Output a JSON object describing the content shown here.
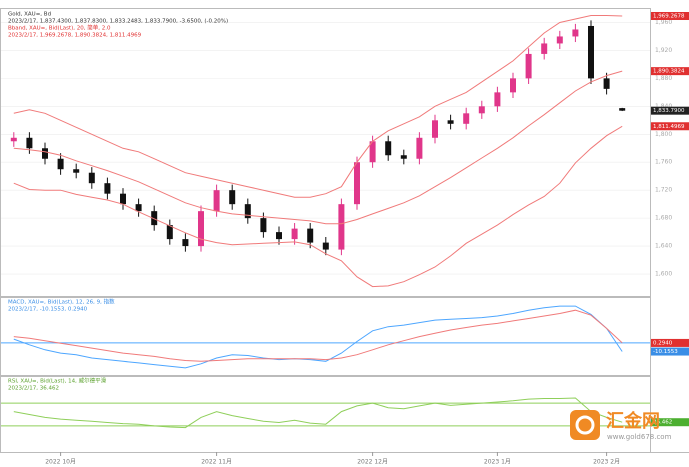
{
  "chart_data": [
    {
      "type": "candlestick",
      "title": "Gold, XAU=, Bd",
      "subtitle": "2023/2/17, 1,837.4300, 1,837.8300, 1,833.2483, 1,833.7900, -3.6500, (-0.20%)",
      "band_title": "Bband, XAU=, Bid(Last), 20, 简单, 2.0",
      "band_subtitle": "2023/2/17, 1,969.2678, 1,890.3824, 1,811.4969",
      "categories": [
        null,
        null,
        null,
        "2022 10月",
        null,
        null,
        null,
        null,
        null,
        null,
        null,
        null,
        null,
        "2022 11月",
        null,
        null,
        null,
        null,
        null,
        null,
        null,
        null,
        null,
        "2022 12月",
        null,
        null,
        null,
        null,
        null,
        null,
        null,
        "2023 1月",
        null,
        null,
        null,
        null,
        null,
        null,
        "2023 2月",
        null
      ],
      "open": [
        1790,
        1795,
        1780,
        1765,
        1750,
        1745,
        1730,
        1715,
        1700,
        1690,
        1670,
        1650,
        1640,
        1690,
        1720,
        1700,
        1680,
        1660,
        1650,
        1665,
        1645,
        1635,
        1700,
        1760,
        1790,
        1770,
        1765,
        1795,
        1820,
        1815,
        1830,
        1840,
        1860,
        1880,
        1915,
        1930,
        1940,
        1955,
        1880,
        1837.43
      ],
      "high": [
        1803,
        1803,
        1788,
        1773,
        1758,
        1753,
        1738,
        1723,
        1708,
        1698,
        1678,
        1658,
        1698,
        1728,
        1728,
        1708,
        1688,
        1668,
        1673,
        1673,
        1653,
        1708,
        1768,
        1798,
        1798,
        1778,
        1803,
        1828,
        1828,
        1838,
        1848,
        1868,
        1888,
        1923,
        1938,
        1948,
        1958,
        1963,
        1888,
        1837.83
      ],
      "low": [
        1782,
        1772,
        1757,
        1742,
        1737,
        1722,
        1707,
        1692,
        1682,
        1662,
        1642,
        1632,
        1632,
        1682,
        1692,
        1672,
        1652,
        1642,
        1642,
        1637,
        1627,
        1627,
        1692,
        1752,
        1762,
        1757,
        1757,
        1787,
        1807,
        1807,
        1822,
        1832,
        1852,
        1872,
        1907,
        1922,
        1932,
        1872,
        1857,
        1833.2483
      ],
      "close": [
        1795,
        1780,
        1765,
        1750,
        1745,
        1730,
        1715,
        1700,
        1690,
        1670,
        1650,
        1640,
        1690,
        1720,
        1700,
        1680,
        1660,
        1650,
        1665,
        1645,
        1635,
        1700,
        1760,
        1790,
        1770,
        1765,
        1795,
        1820,
        1815,
        1830,
        1840,
        1860,
        1880,
        1915,
        1930,
        1940,
        1950,
        1880,
        1865,
        1833.79
      ],
      "up_color": "#e0368a",
      "down_color": "#111111",
      "series": [
        {
          "name": "upper",
          "color": "#f07a7a",
          "values": [
            1830,
            1835,
            1830,
            1820,
            1810,
            1800,
            1790,
            1780,
            1775,
            1765,
            1755,
            1745,
            1740,
            1735,
            1730,
            1725,
            1720,
            1715,
            1710,
            1710,
            1715,
            1725,
            1760,
            1790,
            1805,
            1815,
            1825,
            1840,
            1850,
            1860,
            1875,
            1890,
            1905,
            1925,
            1945,
            1960,
            1965,
            1970,
            1970,
            1969.2678
          ]
        },
        {
          "name": "middle",
          "color": "#f07a7a",
          "values": [
            1780,
            1778,
            1775,
            1770,
            1762,
            1755,
            1748,
            1740,
            1732,
            1722,
            1712,
            1702,
            1695,
            1690,
            1686,
            1684,
            1682,
            1680,
            1678,
            1676,
            1672,
            1672,
            1678,
            1686,
            1694,
            1702,
            1712,
            1725,
            1738,
            1752,
            1766,
            1780,
            1795,
            1812,
            1828,
            1845,
            1862,
            1875,
            1884,
            1890.3824
          ]
        },
        {
          "name": "lower",
          "color": "#f07a7a",
          "values": [
            1730,
            1721,
            1720,
            1720,
            1714,
            1710,
            1706,
            1700,
            1689,
            1679,
            1669,
            1659,
            1650,
            1645,
            1642,
            1643,
            1644,
            1645,
            1646,
            1642,
            1629,
            1619,
            1596,
            1582,
            1583,
            1589,
            1599,
            1610,
            1626,
            1644,
            1657,
            1670,
            1685,
            1699,
            1711,
            1730,
            1759,
            1780,
            1798,
            1811.4969
          ]
        }
      ],
      "ylim": [
        1570,
        1975
      ],
      "yticks": [
        {
          "value": 1600,
          "label": "1,600"
        },
        {
          "value": 1640,
          "label": "1,640"
        },
        {
          "value": 1680,
          "label": "1,680"
        },
        {
          "value": 1720,
          "label": "1,720"
        },
        {
          "value": 1760,
          "label": "1,760"
        },
        {
          "value": 1800,
          "label": "1,800"
        },
        {
          "value": 1840,
          "label": "1,840"
        },
        {
          "value": 1880,
          "label": "1,880"
        },
        {
          "value": 1920,
          "label": "1,920"
        },
        {
          "value": 1960,
          "label": "1,960"
        }
      ],
      "grid": true,
      "price_tags": [
        {
          "value": 1969.2678,
          "label": "1,969.2678",
          "color": "#e03030"
        },
        {
          "value": 1890.3824,
          "label": "1,890.3824",
          "color": "#e03030"
        },
        {
          "value": 1833.79,
          "label": "1,833.7900",
          "color": "#222222"
        },
        {
          "value": 1811.4969,
          "label": "1,811.4969",
          "color": "#e03030"
        }
      ]
    },
    {
      "type": "line",
      "title": "MACD, XAU=, Bid(Last), 12, 26, 9, 指数",
      "subtitle": "2023/2/17, -10.1553, 0.2940",
      "title_color": "#3a8ee6",
      "series": [
        {
          "name": "MACD",
          "color": "#4da6ff",
          "values": [
            5,
            -2,
            -8,
            -12,
            -14,
            -18,
            -20,
            -22,
            -24,
            -26,
            -28,
            -30,
            -25,
            -18,
            -14,
            -15,
            -18,
            -20,
            -19,
            -20,
            -22,
            -12,
            2,
            15,
            20,
            22,
            25,
            28,
            29,
            30,
            31,
            33,
            36,
            40,
            43,
            45,
            45,
            35,
            18,
            -10.1553
          ]
        },
        {
          "name": "Signal",
          "color": "#f07a7a",
          "values": [
            8,
            6,
            3,
            0,
            -3,
            -6,
            -9,
            -12,
            -14,
            -16,
            -19,
            -21,
            -22,
            -21,
            -20,
            -19,
            -19,
            -19,
            -19,
            -19,
            -20,
            -18,
            -14,
            -8,
            -2,
            3,
            8,
            12,
            16,
            19,
            22,
            24,
            27,
            30,
            33,
            36,
            40,
            34,
            18,
            0.294
          ]
        }
      ],
      "ylim": [
        -35,
        50
      ],
      "hlines": [
        {
          "value": 0.294,
          "color": "#4da6ff"
        }
      ],
      "price_tags": [
        {
          "value": 0.294,
          "label": "0.2940",
          "color": "#e03030"
        },
        {
          "value": -10.1553,
          "label": "-10.1553",
          "color": "#3a8ee6"
        }
      ]
    },
    {
      "type": "line",
      "title": "RSI, XAU=, Bid(Last), 14, 威尔德平滑",
      "subtitle": "2023/2/17, 36.462",
      "title_color": "#5aa02c",
      "series": [
        {
          "name": "RSI",
          "color": "#8fcf5a",
          "values": [
            55,
            50,
            45,
            42,
            40,
            38,
            36,
            34,
            33,
            30,
            28,
            27,
            45,
            55,
            48,
            43,
            38,
            36,
            40,
            35,
            33,
            55,
            65,
            70,
            62,
            60,
            65,
            70,
            66,
            68,
            70,
            72,
            74,
            77,
            78,
            78,
            79,
            55,
            45,
            36.462
          ]
        }
      ],
      "ylim": [
        0,
        100
      ],
      "hlines": [
        {
          "value": 70,
          "color": "#8fcf5a"
        },
        {
          "value": 30,
          "color": "#8fcf5a"
        }
      ],
      "price_tags": [
        {
          "value": 36.462,
          "label": "36.462",
          "color": "#4caf30"
        }
      ]
    }
  ],
  "watermark": {
    "name": "汇金网",
    "url": "www.gold678.com"
  }
}
